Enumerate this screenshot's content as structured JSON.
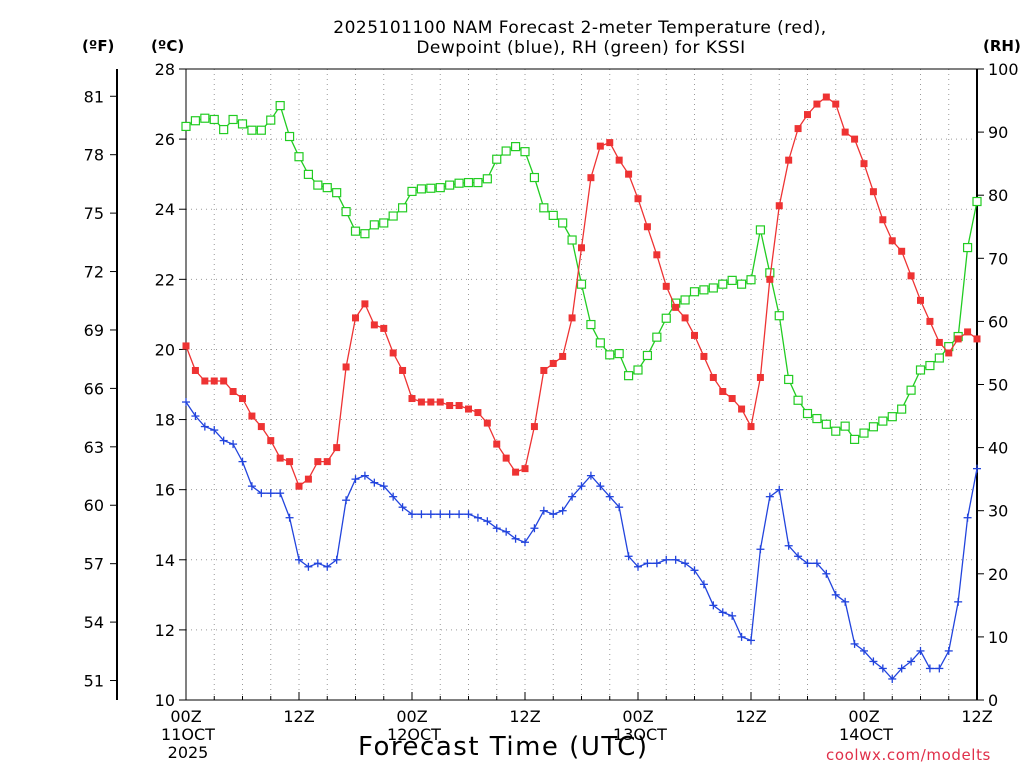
{
  "title_line1": "2025101100 NAM Forecast 2-meter Temperature (red),",
  "title_line2": "Dewpoint (blue), RH (green) for KSSI",
  "unit_f": "(ºF)",
  "unit_c": "(ºC)",
  "unit_rh": "(RH)",
  "xlabel": "Forecast Time (UTC)",
  "credit": "coolwx.com/modelts",
  "colors": {
    "temperature": "#ee3333",
    "dewpoint": "#2244dd",
    "rh": "#22cc22",
    "grid": "#999999"
  },
  "chart_data": {
    "type": "line",
    "title": "2025101100 NAM Forecast 2-meter Temperature (red), Dewpoint (blue), RH (green) for KSSI",
    "xlabel": "Forecast Time (UTC)",
    "grid": true,
    "x_hours": [
      0,
      1,
      2,
      3,
      4,
      5,
      6,
      7,
      8,
      9,
      10,
      11,
      12,
      13,
      14,
      15,
      16,
      17,
      18,
      19,
      20,
      21,
      22,
      23,
      24,
      25,
      26,
      27,
      28,
      29,
      30,
      31,
      32,
      33,
      34,
      35,
      36,
      37,
      38,
      39,
      40,
      41,
      42,
      43,
      44,
      45,
      46,
      47,
      48,
      49,
      50,
      51,
      52,
      53,
      54,
      55,
      56,
      57,
      58,
      59,
      60,
      61,
      62,
      63,
      64,
      65,
      66,
      67,
      68,
      69,
      70,
      71,
      72,
      73,
      74,
      75,
      76,
      77,
      78,
      79,
      80,
      81,
      82,
      83,
      84
    ],
    "x_ticks": [
      {
        "hour": 0,
        "lines": [
          "00Z",
          "11OCT",
          "2025"
        ]
      },
      {
        "hour": 12,
        "lines": [
          "12Z"
        ]
      },
      {
        "hour": 24,
        "lines": [
          "00Z",
          "12OCT"
        ]
      },
      {
        "hour": 36,
        "lines": [
          "12Z"
        ]
      },
      {
        "hour": 48,
        "lines": [
          "00Z",
          "13OCT"
        ]
      },
      {
        "hour": 60,
        "lines": [
          "12Z"
        ]
      },
      {
        "hour": 72,
        "lines": [
          "00Z",
          "14OCT"
        ]
      },
      {
        "hour": 84,
        "lines": [
          "12Z"
        ]
      }
    ],
    "axes": {
      "celsius": {
        "min": 10,
        "max": 28,
        "ticks": [
          10,
          12,
          14,
          16,
          18,
          20,
          22,
          24,
          26,
          28
        ]
      },
      "fahrenheit": {
        "ticks": [
          51,
          54,
          57,
          60,
          63,
          66,
          69,
          72,
          75,
          78,
          81
        ]
      },
      "rh": {
        "min": 0,
        "max": 100,
        "ticks": [
          0,
          10,
          20,
          30,
          40,
          50,
          60,
          70,
          80,
          90,
          100
        ]
      }
    },
    "series": [
      {
        "name": "Temperature",
        "unit": "°C",
        "axis": "celsius",
        "values": [
          20.1,
          19.4,
          19.1,
          19.1,
          19.1,
          18.8,
          18.6,
          18.1,
          17.8,
          17.4,
          16.9,
          16.8,
          16.1,
          16.3,
          16.8,
          16.8,
          17.2,
          19.5,
          20.9,
          21.3,
          20.7,
          20.6,
          19.9,
          19.4,
          18.6,
          18.5,
          18.5,
          18.5,
          18.4,
          18.4,
          18.3,
          18.2,
          17.9,
          17.3,
          16.9,
          16.5,
          16.6,
          17.8,
          19.4,
          19.6,
          19.8,
          20.9,
          22.9,
          24.9,
          25.8,
          25.9,
          25.4,
          25.0,
          24.3,
          23.5,
          22.7,
          21.8,
          21.2,
          20.9,
          20.4,
          19.8,
          19.2,
          18.8,
          18.6,
          18.3,
          17.8,
          19.2,
          22.0,
          24.1,
          25.4,
          26.3,
          26.7,
          27.0,
          27.2,
          27.0,
          26.2,
          26.0,
          25.3,
          24.5,
          23.7,
          23.1,
          22.8,
          22.1,
          21.4,
          20.8,
          20.2,
          19.9,
          20.3,
          20.5,
          20.3
        ]
      },
      {
        "name": "Dewpoint",
        "unit": "°C",
        "axis": "celsius",
        "values": [
          18.5,
          18.1,
          17.8,
          17.7,
          17.4,
          17.3,
          16.8,
          16.1,
          15.9,
          15.9,
          15.9,
          15.2,
          14.0,
          13.8,
          13.9,
          13.8,
          14.0,
          15.7,
          16.3,
          16.4,
          16.2,
          16.1,
          15.8,
          15.5,
          15.3,
          15.3,
          15.3,
          15.3,
          15.3,
          15.3,
          15.3,
          15.2,
          15.1,
          14.9,
          14.8,
          14.6,
          14.5,
          14.9,
          15.4,
          15.3,
          15.4,
          15.8,
          16.1,
          16.4,
          16.1,
          15.8,
          15.5,
          14.1,
          13.8,
          13.9,
          13.9,
          14.0,
          14.0,
          13.9,
          13.7,
          13.3,
          12.7,
          12.5,
          12.4,
          11.8,
          11.7,
          14.3,
          15.8,
          16.0,
          14.4,
          14.1,
          13.9,
          13.9,
          13.6,
          13.0,
          12.8,
          11.6,
          11.4,
          11.1,
          10.9,
          10.6,
          10.9,
          11.1,
          11.4,
          10.9,
          10.9,
          11.4,
          12.8,
          15.2,
          16.6
        ]
      },
      {
        "name": "RH",
        "unit": "%",
        "axis": "rh",
        "values": [
          90.9,
          91.8,
          92.2,
          92.0,
          90.4,
          92.0,
          91.3,
          90.3,
          90.3,
          91.9,
          94.2,
          89.3,
          86.1,
          83.3,
          81.6,
          81.2,
          80.4,
          77.4,
          74.3,
          73.9,
          75.3,
          75.6,
          76.7,
          78.0,
          80.6,
          81.0,
          81.1,
          81.2,
          81.6,
          81.9,
          82.0,
          82.0,
          82.6,
          85.7,
          87.0,
          87.7,
          86.9,
          82.8,
          78.0,
          76.8,
          75.6,
          72.9,
          65.9,
          59.5,
          56.6,
          54.7,
          54.9,
          51.4,
          52.3,
          54.6,
          57.5,
          60.5,
          62.9,
          63.4,
          64.7,
          65.0,
          65.3,
          65.9,
          66.5,
          65.9,
          66.6,
          74.5,
          67.7,
          60.9,
          50.8,
          47.5,
          45.4,
          44.6,
          43.7,
          42.6,
          43.4,
          41.3,
          42.3,
          43.3,
          44.2,
          44.9,
          46.1,
          49.1,
          52.3,
          53.0,
          54.2,
          56.0,
          57.6,
          71.7,
          79.0
        ]
      }
    ]
  }
}
